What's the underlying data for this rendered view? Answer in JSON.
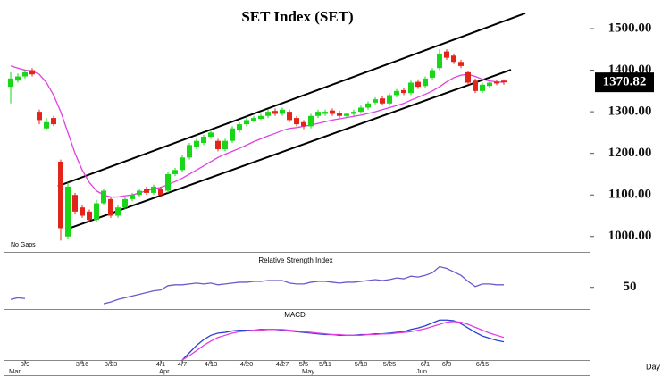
{
  "chart_data": [
    {
      "type": "candlestick",
      "title": "SET Index (SET)",
      "note": "No Gaps",
      "xlabel": "Day",
      "categories": [
        null,
        null,
        "3/9",
        null,
        null,
        null,
        null,
        null,
        null,
        null,
        "3/16",
        null,
        null,
        null,
        "3/23",
        null,
        null,
        null,
        null,
        null,
        null,
        "4/1",
        null,
        null,
        "4/7",
        null,
        null,
        null,
        "4/13",
        null,
        null,
        null,
        null,
        "4/20",
        null,
        null,
        null,
        null,
        "4/27",
        null,
        null,
        "5/5",
        null,
        null,
        "5/11",
        null,
        null,
        null,
        null,
        "5/18",
        null,
        null,
        null,
        "5/25",
        null,
        null,
        null,
        null,
        "6/1",
        null,
        null,
        "6/8",
        null,
        null,
        null,
        null,
        "6/15",
        null,
        null,
        null
      ],
      "months": [
        "Mar",
        null,
        null,
        null,
        null,
        null,
        null,
        null,
        null,
        null,
        null,
        null,
        null,
        null,
        null,
        null,
        null,
        null,
        null,
        null,
        null,
        "Apr",
        null,
        null,
        null,
        null,
        null,
        null,
        null,
        null,
        null,
        null,
        null,
        null,
        null,
        null,
        null,
        null,
        null,
        null,
        null,
        "May",
        null,
        null,
        null,
        null,
        null,
        null,
        null,
        null,
        null,
        null,
        null,
        null,
        null,
        null,
        null,
        "Jun",
        null,
        null,
        null,
        null,
        null,
        null,
        null,
        null,
        null,
        null,
        null
      ],
      "open": [
        1360,
        1375,
        1385,
        1400,
        1300,
        1260,
        1285,
        1180,
        1000,
        1100,
        1070,
        1060,
        1040,
        1080,
        1090,
        1050,
        1070,
        1090,
        1100,
        1115,
        1105,
        1115,
        1110,
        1150,
        1160,
        1190,
        1215,
        1225,
        1240,
        1230,
        1210,
        1230,
        1255,
        1270,
        1278,
        1283,
        1290,
        1302,
        1295,
        1300,
        1285,
        1275,
        1265,
        1290,
        1295,
        1303,
        1298,
        1290,
        1295,
        1300,
        1310,
        1322,
        1332,
        1320,
        1340,
        1352,
        1345,
        1372,
        1362,
        1382,
        1405,
        1445,
        1435,
        1420,
        1395,
        1375,
        1350,
        1362,
        1372,
        1375
      ],
      "high": [
        1395,
        1392,
        1402,
        1405,
        1305,
        1285,
        1290,
        1185,
        1130,
        1105,
        1075,
        1065,
        1088,
        1115,
        1095,
        1075,
        1095,
        1105,
        1115,
        1120,
        1125,
        1120,
        1155,
        1165,
        1195,
        1225,
        1235,
        1245,
        1255,
        1235,
        1235,
        1265,
        1275,
        1285,
        1290,
        1295,
        1305,
        1308,
        1310,
        1305,
        1290,
        1280,
        1295,
        1305,
        1305,
        1308,
        1302,
        1298,
        1305,
        1315,
        1325,
        1335,
        1337,
        1345,
        1355,
        1358,
        1375,
        1378,
        1385,
        1405,
        1450,
        1450,
        1440,
        1425,
        1398,
        1380,
        1370,
        1375,
        1376,
        1378
      ],
      "low": [
        1320,
        1370,
        1380,
        1385,
        1270,
        1255,
        1265,
        990,
        995,
        1055,
        1045,
        1035,
        1035,
        1075,
        1045,
        1045,
        1065,
        1085,
        1095,
        1100,
        1100,
        1095,
        1105,
        1145,
        1155,
        1185,
        1210,
        1220,
        1235,
        1205,
        1205,
        1225,
        1250,
        1265,
        1275,
        1280,
        1285,
        1290,
        1290,
        1275,
        1265,
        1258,
        1260,
        1285,
        1290,
        1290,
        1285,
        1285,
        1290,
        1295,
        1305,
        1318,
        1315,
        1315,
        1335,
        1340,
        1340,
        1355,
        1357,
        1378,
        1400,
        1425,
        1415,
        1405,
        1365,
        1345,
        1345,
        1358,
        1364,
        1365
      ],
      "close": [
        1380,
        1385,
        1395,
        1390,
        1280,
        1275,
        1270,
        1020,
        1120,
        1060,
        1050,
        1040,
        1080,
        1110,
        1050,
        1070,
        1090,
        1100,
        1110,
        1105,
        1120,
        1100,
        1150,
        1160,
        1190,
        1220,
        1230,
        1240,
        1250,
        1210,
        1230,
        1260,
        1270,
        1280,
        1285,
        1290,
        1300,
        1295,
        1305,
        1280,
        1270,
        1265,
        1290,
        1300,
        1300,
        1295,
        1290,
        1295,
        1300,
        1310,
        1320,
        1330,
        1320,
        1340,
        1350,
        1345,
        1370,
        1360,
        1380,
        1400,
        1440,
        1430,
        1420,
        1410,
        1370,
        1350,
        1365,
        1370,
        1368,
        1370.82
      ],
      "up_color": "#19d619",
      "down_color": "#e3241b",
      "series": [
        {
          "color": "#e040e0",
          "values": [
            1410,
            1405,
            1400,
            1398,
            1390,
            1370,
            1340,
            1300,
            1250,
            1200,
            1160,
            1130,
            1110,
            1100,
            1095,
            1095,
            1098,
            1100,
            1105,
            1110,
            1115,
            1118,
            1125,
            1132,
            1140,
            1150,
            1160,
            1170,
            1180,
            1190,
            1198,
            1205,
            1212,
            1220,
            1228,
            1235,
            1242,
            1248,
            1255,
            1260,
            1262,
            1265,
            1268,
            1272,
            1276,
            1280,
            1283,
            1286,
            1289,
            1292,
            1296,
            1300,
            1305,
            1310,
            1315,
            1320,
            1328,
            1335,
            1342,
            1350,
            1360,
            1372,
            1382,
            1388,
            1390,
            1385,
            1378,
            1374,
            1372,
            1371
          ]
        }
      ],
      "trendlines": [
        {
          "x": [
            6.6,
            72
          ],
          "values": [
            1121,
            1537
          ]
        },
        {
          "x": [
            8.25,
            70
          ],
          "values": [
            1020,
            1401
          ]
        }
      ],
      "last_value": 1370.82,
      "last_label": "1370.82",
      "ylim": [
        963,
        1558
      ],
      "yticks": [
        {
          "value": 1000,
          "label": "1000.00"
        },
        {
          "value": 1100,
          "label": "1100.00"
        },
        {
          "value": 1200,
          "label": "1200.00"
        },
        {
          "value": 1300,
          "label": "1300.00"
        },
        {
          "value": 1400,
          "label": "1400.00"
        },
        {
          "value": 1500,
          "label": "1500.00"
        }
      ]
    },
    {
      "type": "line",
      "title": "Relative Strength Index",
      "ylim": [
        29,
        87
      ],
      "yticks": [
        50
      ],
      "series": [
        {
          "color": "#6a5acd",
          "values": [
            36,
            38,
            37,
            null,
            null,
            null,
            null,
            null,
            null,
            null,
            null,
            null,
            null,
            31,
            33,
            36,
            38,
            40,
            42,
            44,
            46,
            47,
            52,
            53,
            53,
            54,
            55,
            54,
            55,
            53,
            54,
            55,
            56,
            56,
            57,
            57,
            58,
            58,
            58,
            55,
            54,
            54,
            56,
            57,
            57,
            56,
            55,
            56,
            56,
            57,
            58,
            59,
            58,
            59,
            61,
            60,
            63,
            62,
            64,
            67,
            74,
            72,
            68,
            64,
            57,
            51,
            54,
            54,
            53,
            53
          ]
        }
      ]
    },
    {
      "type": "line",
      "title": "MACD",
      "ylim": [
        -40,
        30
      ],
      "series": [
        {
          "color": "#2a3fd6",
          "values": [
            null,
            null,
            null,
            null,
            null,
            null,
            null,
            null,
            null,
            null,
            null,
            null,
            null,
            null,
            null,
            null,
            null,
            null,
            null,
            null,
            null,
            null,
            null,
            null,
            -40,
            -30,
            -20,
            -12,
            -6,
            -3,
            -2,
            0,
            1,
            1,
            1,
            2,
            2,
            2,
            1,
            0,
            -1,
            -2,
            -3,
            -4,
            -5,
            -5,
            -6,
            -6,
            -6,
            -5,
            -5,
            -4,
            -4,
            -3,
            -2,
            -1,
            2,
            4,
            7,
            11,
            15,
            15,
            14,
            10,
            4,
            -2,
            -7,
            -10,
            -13,
            -15
          ]
        },
        {
          "color": "#e040e0",
          "values": [
            null,
            null,
            null,
            null,
            null,
            null,
            null,
            null,
            null,
            null,
            null,
            null,
            null,
            null,
            null,
            null,
            null,
            null,
            null,
            null,
            null,
            null,
            null,
            null,
            -40,
            -34,
            -27,
            -20,
            -14,
            -9,
            -6,
            -3,
            -1,
            0,
            1,
            1,
            2,
            2,
            2,
            1,
            0,
            -1,
            -2,
            -3,
            -4,
            -5,
            -5,
            -6,
            -6,
            -6,
            -5,
            -5,
            -4,
            -4,
            -3,
            -2,
            -1,
            1,
            3,
            6,
            9,
            12,
            13,
            12,
            9,
            5,
            1,
            -3,
            -6,
            -9
          ]
        }
      ]
    }
  ]
}
